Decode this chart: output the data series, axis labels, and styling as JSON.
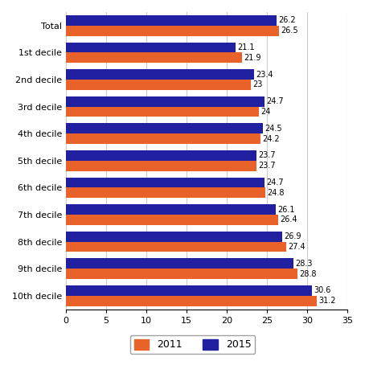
{
  "categories": [
    "Total",
    "1st decile",
    "2nd decile",
    "3rd decile",
    "4th decile",
    "5th decile",
    "6th decile",
    "7th decile",
    "8th decile",
    "9th decile",
    "10th decile"
  ],
  "values_2011": [
    26.5,
    21.9,
    23.0,
    24.0,
    24.2,
    23.7,
    24.8,
    26.4,
    27.4,
    28.8,
    31.2
  ],
  "values_2015": [
    26.2,
    21.1,
    23.4,
    24.7,
    24.5,
    23.7,
    24.7,
    26.1,
    26.9,
    28.3,
    30.6
  ],
  "color_2011": "#E8622A",
  "color_2015": "#2020A0",
  "xlim": [
    0,
    35
  ],
  "xticks": [
    0,
    5,
    10,
    15,
    20,
    25,
    30,
    35
  ],
  "bar_height": 0.38,
  "figsize": [
    4.54,
    4.54
  ],
  "dpi": 100,
  "grid_color": "#CCCCCC"
}
